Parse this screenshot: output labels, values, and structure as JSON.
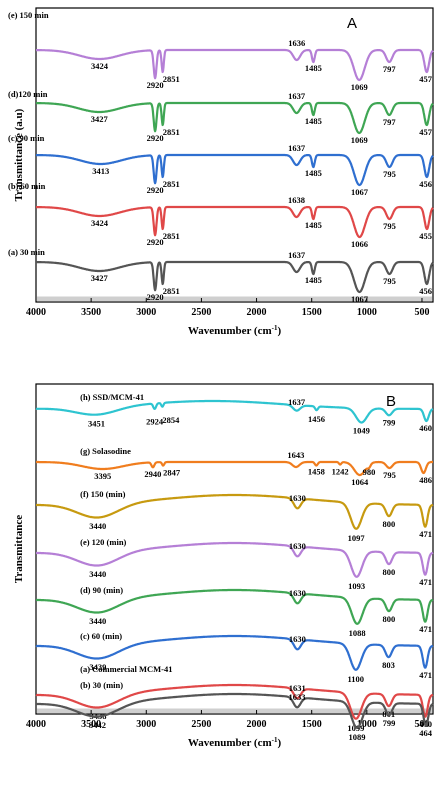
{
  "chart_data": [
    {
      "type": "line",
      "panel": "A",
      "xlabel": "Wavenumber (cm",
      "xlabel_sup": "-1",
      "xlabel_end": ")",
      "ylabel": "Transmittance (a.u)",
      "xlim": [
        4000,
        400
      ],
      "x_ticks": [
        4000,
        3500,
        3000,
        2500,
        2000,
        1500,
        1000,
        500
      ],
      "grid": false,
      "series": [
        {
          "name": "(e) 150 min",
          "color": "#b57fd6",
          "peaks": [
            3424,
            2920,
            2851,
            1636,
            1485,
            1069,
            797,
            457
          ],
          "peak_labels": [
            "3424",
            "2920",
            "2851",
            "1636",
            "1485",
            "1069",
            "797",
            "457"
          ]
        },
        {
          "name": "(d)120 min",
          "color": "#3fa654",
          "peaks": [
            3427,
            2920,
            2851,
            1637,
            1485,
            1069,
            797,
            457
          ],
          "peak_labels": [
            "3427",
            "2920",
            "2851",
            "1637",
            "1485",
            "1069",
            "797",
            "457"
          ]
        },
        {
          "name": "(c) 90 min",
          "color": "#2f6fd0",
          "peaks": [
            3413,
            2920,
            2851,
            1637,
            1485,
            1067,
            795,
            456
          ],
          "peak_labels": [
            "3413",
            "2920",
            "2851",
            "1637",
            "1485",
            "1067",
            "795",
            "456"
          ]
        },
        {
          "name": "(b) 60 min",
          "color": "#e04848",
          "peaks": [
            3424,
            2920,
            2851,
            1638,
            1485,
            1066,
            795,
            455
          ],
          "peak_labels": [
            "3424",
            "2920",
            "2851",
            "1638",
            "1485",
            "1066",
            "795",
            "455"
          ]
        },
        {
          "name": "(a) 30 min",
          "color": "#555555",
          "peaks": [
            3427,
            2920,
            2851,
            1637,
            1485,
            1067,
            795,
            456
          ],
          "peak_labels": [
            "3427",
            "2920",
            "2851",
            "1637",
            "1485",
            "1067",
            "795",
            "456"
          ]
        }
      ]
    },
    {
      "type": "line",
      "panel": "B",
      "xlabel": "Wavenumber (cm",
      "xlabel_sup": "-1",
      "xlabel_end": ")",
      "ylabel": "Transmittance",
      "xlim": [
        4000,
        400
      ],
      "x_ticks": [
        4000,
        3500,
        3000,
        2500,
        2000,
        1500,
        1000,
        500
      ],
      "grid": false,
      "series": [
        {
          "name": "(h) SSD/MCM-41",
          "color": "#2ec4d0",
          "peaks": [
            3451,
            2924,
            2854,
            1637,
            1456,
            1049,
            799,
            460
          ],
          "peak_labels": [
            "3451",
            "2924",
            "2854",
            "1637",
            "1456",
            "1049",
            "799",
            "460"
          ]
        },
        {
          "name": "(g) Solasodine",
          "color": "#f07d1e",
          "peaks": [
            3395,
            2940,
            2847,
            1643,
            1458,
            1242,
            1064,
            980,
            795,
            486
          ],
          "peak_labels": [
            "3395",
            "2940",
            "2847",
            "1643",
            "1458",
            "1242",
            "1064",
            "980",
            "795",
            "486"
          ]
        },
        {
          "name": "(f) 150 (min)",
          "color": "#c79a10",
          "peaks": [
            3440,
            1630,
            1097,
            800,
            471
          ],
          "peak_labels": [
            "3440",
            "1630",
            "1097",
            "800",
            "471"
          ]
        },
        {
          "name": "(e) 120  (min)",
          "color": "#b57fd6",
          "peaks": [
            3440,
            1630,
            1093,
            800,
            471
          ],
          "peak_labels": [
            "3440",
            "1630",
            "1093",
            "800",
            "471"
          ]
        },
        {
          "name": "(d) 90 (min)",
          "color": "#3fa654",
          "peaks": [
            3440,
            1630,
            1088,
            800,
            471
          ],
          "peak_labels": [
            "3440",
            "1630",
            "1088",
            "800",
            "471"
          ]
        },
        {
          "name": "(c) 60 (min)",
          "color": "#2f6fd0",
          "peaks": [
            3439,
            1630,
            1100,
            803,
            471
          ],
          "peak_labels": [
            "3439",
            "1630",
            "1100",
            "803",
            "471"
          ]
        },
        {
          "name": "(b) 30 (min)",
          "color": "#e04848",
          "peaks": [
            3438,
            1631,
            1099,
            801,
            470
          ],
          "peak_labels": [
            "3438",
            "1631",
            "1099",
            "801",
            "470"
          ]
        },
        {
          "name": "(a) Commercial MCM-41",
          "color": "#555555",
          "peaks": [
            3442,
            1633,
            1089,
            799,
            464
          ],
          "peak_labels": [
            "3442",
            "1633",
            "1089",
            "799",
            "464"
          ]
        }
      ]
    }
  ]
}
